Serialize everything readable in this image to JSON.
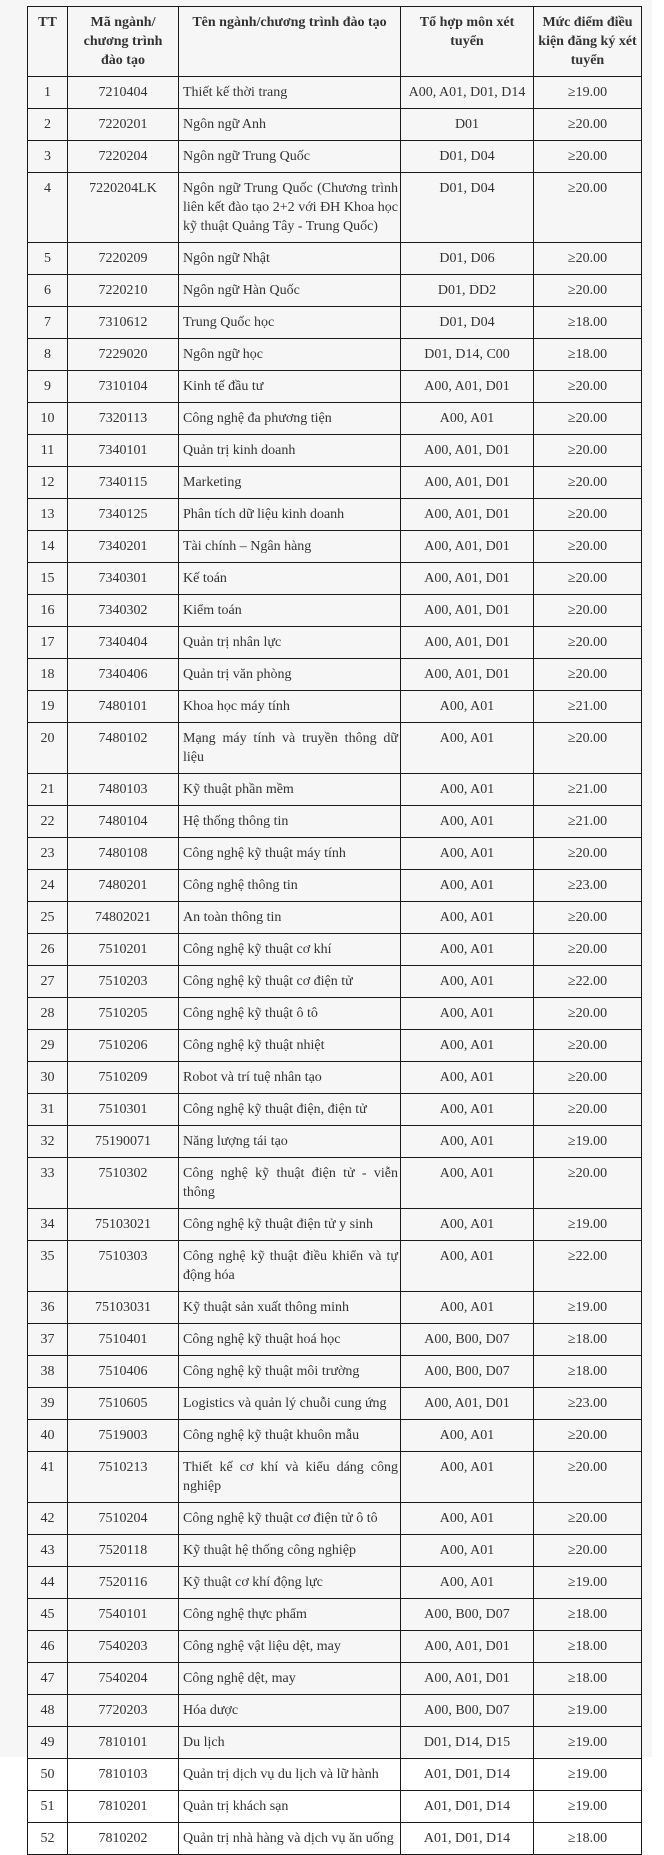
{
  "table": {
    "headers": [
      "TT",
      "Mã ngành/ chương trình đào tạo",
      "Tên ngành/chương trình đào tạo",
      "Tổ hợp môn xét tuyển",
      "Mức điểm điều kiện đăng ký xét tuyển"
    ],
    "rows": [
      [
        "1",
        "7210404",
        "Thiết kế thời trang",
        "A00, A01, D01, D14",
        "≥19.00"
      ],
      [
        "2",
        "7220201",
        "Ngôn ngữ Anh",
        "D01",
        "≥20.00"
      ],
      [
        "3",
        "7220204",
        "Ngôn ngữ Trung Quốc",
        "D01, D04",
        "≥20.00"
      ],
      [
        "4",
        "7220204LK",
        "Ngôn ngữ Trung Quốc (Chương trình liên kết đào tạo 2+2 với ĐH Khoa học kỹ thuật Quảng Tây - Trung Quốc)",
        "D01, D04",
        "≥20.00"
      ],
      [
        "5",
        "7220209",
        "Ngôn ngữ Nhật",
        "D01, D06",
        "≥20.00"
      ],
      [
        "6",
        "7220210",
        "Ngôn ngữ Hàn Quốc",
        "D01, DD2",
        "≥20.00"
      ],
      [
        "7",
        "7310612",
        "Trung Quốc học",
        "D01, D04",
        "≥18.00"
      ],
      [
        "8",
        "7229020",
        "Ngôn ngữ học",
        "D01, D14, C00",
        "≥18.00"
      ],
      [
        "9",
        "7310104",
        "Kinh tế đầu tư",
        "A00, A01, D01",
        "≥20.00"
      ],
      [
        "10",
        "7320113",
        "Công nghệ đa phương tiện",
        "A00, A01",
        "≥20.00"
      ],
      [
        "11",
        "7340101",
        "Quản trị kinh doanh",
        "A00, A01, D01",
        "≥20.00"
      ],
      [
        "12",
        "7340115",
        "Marketing",
        "A00, A01, D01",
        "≥20.00"
      ],
      [
        "13",
        "7340125",
        "Phân tích dữ liệu kinh doanh",
        "A00, A01, D01",
        "≥20.00"
      ],
      [
        "14",
        "7340201",
        "Tài chính – Ngân hàng",
        "A00, A01, D01",
        "≥20.00"
      ],
      [
        "15",
        "7340301",
        "Kế toán",
        "A00, A01, D01",
        "≥20.00"
      ],
      [
        "16",
        "7340302",
        "Kiểm toán",
        "A00, A01, D01",
        "≥20.00"
      ],
      [
        "17",
        "7340404",
        "Quản trị nhân lực",
        "A00, A01, D01",
        "≥20.00"
      ],
      [
        "18",
        "7340406",
        "Quản trị văn phòng",
        "A00, A01, D01",
        "≥20.00"
      ],
      [
        "19",
        "7480101",
        "Khoa học máy tính",
        "A00, A01",
        "≥21.00"
      ],
      [
        "20",
        "7480102",
        "Mạng máy tính và truyền thông dữ liệu",
        "A00, A01",
        "≥20.00"
      ],
      [
        "21",
        "7480103",
        "Kỹ thuật phần mềm",
        "A00, A01",
        "≥21.00"
      ],
      [
        "22",
        "7480104",
        "Hệ thống thông tin",
        "A00, A01",
        "≥21.00"
      ],
      [
        "23",
        "7480108",
        "Công nghệ kỹ thuật máy tính",
        "A00, A01",
        "≥20.00"
      ],
      [
        "24",
        "7480201",
        "Công nghệ thông tin",
        "A00, A01",
        "≥23.00"
      ],
      [
        "25",
        "74802021",
        "An toàn thông tin",
        "A00, A01",
        "≥20.00"
      ],
      [
        "26",
        "7510201",
        "Công nghệ kỹ thuật cơ khí",
        "A00, A01",
        "≥20.00"
      ],
      [
        "27",
        "7510203",
        "Công nghệ kỹ thuật cơ điện tử",
        "A00, A01",
        "≥22.00"
      ],
      [
        "28",
        "7510205",
        "Công nghệ kỹ thuật ô tô",
        "A00, A01",
        "≥20.00"
      ],
      [
        "29",
        "7510206",
        "Công nghệ kỹ thuật nhiệt",
        "A00, A01",
        "≥20.00"
      ],
      [
        "30",
        "7510209",
        "Robot và trí tuệ nhân tạo",
        "A00, A01",
        "≥20.00"
      ],
      [
        "31",
        "7510301",
        "Công nghệ kỹ thuật điện, điện tử",
        "A00, A01",
        "≥20.00"
      ],
      [
        "32",
        "75190071",
        "Năng lượng tái tạo",
        "A00, A01",
        "≥19.00"
      ],
      [
        "33",
        "7510302",
        "Công nghệ kỹ thuật điện tử - viễn thông",
        "A00, A01",
        "≥20.00"
      ],
      [
        "34",
        "75103021",
        "Công nghệ kỹ thuật điện tử y sinh",
        "A00, A01",
        "≥19.00"
      ],
      [
        "35",
        "7510303",
        "Công nghệ kỹ thuật điều khiển và tự động hóa",
        "A00, A01",
        "≥22.00"
      ],
      [
        "36",
        "75103031",
        "Kỹ thuật sản xuất thông minh",
        "A00, A01",
        "≥19.00"
      ],
      [
        "37",
        "7510401",
        "Công nghệ kỹ thuật hoá học",
        "A00, B00, D07",
        "≥18.00"
      ],
      [
        "38",
        "7510406",
        "Công nghệ kỹ thuật môi trường",
        "A00, B00, D07",
        "≥18.00"
      ],
      [
        "39",
        "7510605",
        "Logistics và quản lý chuỗi cung ứng",
        "A00, A01, D01",
        "≥23.00"
      ],
      [
        "40",
        "7519003",
        "Công nghệ kỹ thuật khuôn mẫu",
        "A00, A01",
        "≥20.00"
      ],
      [
        "41",
        "7510213",
        "Thiết kế cơ khí và kiểu dáng công nghiệp",
        "A00, A01",
        "≥20.00"
      ],
      [
        "42",
        "7510204",
        "Công nghệ kỹ thuật cơ điện tử ô tô",
        "A00, A01",
        "≥20.00"
      ],
      [
        "43",
        "7520118",
        "Kỹ thuật hệ thống công nghiệp",
        "A00, A01",
        "≥20.00"
      ],
      [
        "44",
        "7520116",
        "Kỹ thuật cơ khí động lực",
        "A00, A01",
        "≥19.00"
      ],
      [
        "45",
        "7540101",
        "Công nghệ thực phẩm",
        "A00, B00, D07",
        "≥18.00"
      ],
      [
        "46",
        "7540203",
        "Công nghệ vật liệu dệt, may",
        "A00, A01, D01",
        "≥18.00"
      ],
      [
        "47",
        "7540204",
        "Công nghệ dệt, may",
        "A00, A01, D01",
        "≥18.00"
      ],
      [
        "48",
        "7720203",
        "Hóa dược",
        "A00, B00, D07",
        "≥19.00"
      ],
      [
        "49",
        "7810101",
        "Du lịch",
        "D01, D14, D15",
        "≥19.00"
      ],
      [
        "50",
        "7810103",
        "Quản trị dịch vụ du lịch và lữ hành",
        "A01, D01, D14",
        "≥19.00"
      ],
      [
        "51",
        "7810201",
        "Quản trị khách sạn",
        "A01, D01, D14",
        "≥19.00"
      ],
      [
        "52",
        "7810202",
        "Quản trị nhà hàng và dịch vụ ăn uống",
        "A01, D01, D14",
        "≥18.00"
      ]
    ]
  }
}
